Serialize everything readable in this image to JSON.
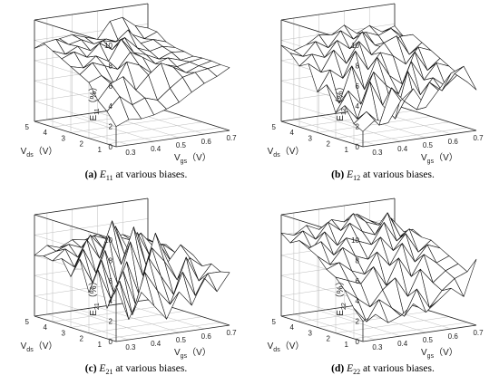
{
  "chart_data": [
    {
      "type": "surface",
      "panel": "a",
      "caption": {
        "label": "(a)",
        "symbol": "E",
        "subscript": "11",
        "text": " at various biases."
      },
      "zlabel": {
        "main": "E",
        "sub": "11",
        "unit": "（%）"
      },
      "xlabel": {
        "main": "V",
        "sub": "gs",
        "unit": "（V）"
      },
      "ylabel": {
        "main": "V",
        "sub": "ds",
        "unit": "（V）"
      },
      "xticks": [
        "0.3",
        "0.4",
        "0.5",
        "0.6",
        "0.7"
      ],
      "yticks": [
        "1",
        "2",
        "3",
        "4",
        "5"
      ],
      "zticks": [
        "0",
        "2",
        "4",
        "6",
        "8",
        "10"
      ],
      "xlim": [
        0.25,
        0.7
      ],
      "ylim": [
        0.5,
        5
      ],
      "zlim": [
        0,
        10
      ],
      "x": [
        0.25,
        0.3,
        0.35,
        0.4,
        0.45,
        0.5,
        0.55,
        0.6,
        0.65,
        0.7
      ],
      "y": [
        0.5,
        1,
        1.5,
        2,
        2.5,
        3,
        3.5,
        4,
        4.5,
        5
      ],
      "z": [
        [
          2.0,
          2.5,
          2.4,
          2.6,
          3.0,
          3.5,
          4.3,
          5.0,
          5.5,
          6.2
        ],
        [
          3.2,
          4.5,
          3.5,
          4.0,
          3.6,
          4.6,
          5.5,
          5.8,
          6.0,
          6.2
        ],
        [
          4.0,
          5.5,
          6.0,
          4.5,
          5.8,
          6.8,
          6.2,
          5.5,
          6.0,
          6.3
        ],
        [
          5.5,
          6.0,
          5.0,
          7.0,
          6.5,
          5.5,
          6.2,
          5.8,
          6.1,
          6.3
        ],
        [
          6.0,
          7.0,
          6.5,
          6.0,
          7.5,
          6.8,
          6.0,
          6.4,
          6.0,
          6.2
        ],
        [
          6.5,
          6.2,
          7.2,
          6.5,
          8.5,
          7.0,
          6.6,
          6.0,
          6.5,
          6.4
        ],
        [
          7.0,
          7.5,
          6.8,
          8.0,
          7.2,
          8.2,
          7.0,
          6.5,
          6.8,
          6.5
        ],
        [
          7.5,
          7.0,
          7.6,
          7.0,
          7.8,
          7.5,
          8.5,
          7.0,
          7.2,
          6.8
        ],
        [
          8.0,
          8.2,
          7.5,
          7.8,
          7.2,
          7.5,
          7.0,
          7.6,
          7.0,
          7.5
        ],
        [
          7.2,
          7.5,
          7.8,
          8.0,
          7.6,
          7.2,
          8.8,
          9.0,
          8.0,
          7.6
        ]
      ]
    },
    {
      "type": "surface",
      "panel": "b",
      "caption": {
        "label": "(b)",
        "symbol": "E",
        "subscript": "12",
        "text": " at various biases."
      },
      "zlabel": {
        "main": "E",
        "sub": "12",
        "unit": "（%）"
      },
      "xlabel": {
        "main": "V",
        "sub": "gs",
        "unit": "（V）"
      },
      "ylabel": {
        "main": "V",
        "sub": "ds",
        "unit": "（V）"
      },
      "xticks": [
        "0.3",
        "0.4",
        "0.5",
        "0.6",
        "0.7"
      ],
      "yticks": [
        "1",
        "2",
        "3",
        "4",
        "5"
      ],
      "zticks": [
        "0",
        "2",
        "4",
        "6",
        "8",
        "10"
      ],
      "xlim": [
        0.25,
        0.7
      ],
      "ylim": [
        0.5,
        5
      ],
      "zlim": [
        0,
        10
      ],
      "x": [
        0.25,
        0.3,
        0.35,
        0.4,
        0.45,
        0.5,
        0.55,
        0.6,
        0.65,
        0.7
      ],
      "y": [
        0.5,
        1,
        1.5,
        2,
        2.5,
        3,
        3.5,
        4,
        4.5,
        5
      ],
      "z": [
        [
          1.5,
          2.5,
          2.0,
          4.0,
          5.0,
          3.0,
          4.5,
          6.0,
          6.5,
          4.0
        ],
        [
          2.0,
          3.0,
          1.5,
          5.0,
          3.5,
          2.5,
          5.0,
          4.0,
          5.5,
          4.5
        ],
        [
          3.5,
          2.0,
          5.5,
          3.0,
          1.5,
          6.0,
          3.5,
          5.0,
          4.0,
          5.0
        ],
        [
          2.5,
          4.5,
          3.0,
          6.0,
          4.5,
          3.5,
          6.5,
          4.5,
          6.0,
          5.5
        ],
        [
          5.0,
          3.0,
          6.5,
          4.0,
          7.0,
          5.0,
          4.0,
          7.0,
          5.0,
          6.0
        ],
        [
          4.0,
          6.0,
          5.0,
          7.5,
          5.5,
          7.0,
          6.5,
          5.5,
          7.0,
          6.5
        ],
        [
          6.5,
          5.5,
          7.5,
          6.0,
          8.0,
          6.5,
          7.5,
          8.0,
          6.0,
          7.0
        ],
        [
          6.0,
          7.0,
          6.5,
          8.0,
          7.0,
          8.5,
          7.0,
          6.5,
          7.5,
          7.5
        ],
        [
          7.0,
          6.5,
          7.8,
          7.0,
          8.5,
          7.5,
          8.0,
          7.5,
          8.0,
          7.0
        ],
        [
          7.5,
          6.8,
          7.2,
          8.0,
          7.8,
          8.6,
          7.6,
          8.2,
          7.4,
          7.8
        ]
      ]
    },
    {
      "type": "surface",
      "panel": "c",
      "caption": {
        "label": "(c)",
        "symbol": "E",
        "subscript": "21",
        "text": " at various biases."
      },
      "zlabel": {
        "main": "E",
        "sub": "21",
        "unit": "（%）"
      },
      "xlabel": {
        "main": "V",
        "sub": "gs",
        "unit": "（V）"
      },
      "ylabel": {
        "main": "V",
        "sub": "ds",
        "unit": "（V）"
      },
      "xticks": [
        "0.3",
        "0.4",
        "0.5",
        "0.6",
        "0.7"
      ],
      "yticks": [
        "1",
        "2",
        "3",
        "4",
        "5"
      ],
      "zticks": [
        "0",
        "2",
        "4",
        "6",
        "8",
        "10"
      ],
      "xlim": [
        0.25,
        0.7
      ],
      "ylim": [
        0.5,
        5
      ],
      "zlim": [
        0,
        10
      ],
      "x": [
        0.25,
        0.3,
        0.35,
        0.4,
        0.45,
        0.5,
        0.55,
        0.6,
        0.65,
        0.7
      ],
      "y": [
        0.5,
        1,
        1.5,
        2,
        2.5,
        3,
        3.5,
        4,
        4.5,
        5
      ],
      "z": [
        [
          5.5,
          2.0,
          4.5,
          3.0,
          1.5,
          4.0,
          2.5,
          5.0,
          3.5,
          5.2
        ],
        [
          3.0,
          5.5,
          2.0,
          6.0,
          4.0,
          2.5,
          5.5,
          3.0,
          5.0,
          5.0
        ],
        [
          6.5,
          3.5,
          6.0,
          2.5,
          7.0,
          5.0,
          3.0,
          6.5,
          4.0,
          5.5
        ],
        [
          4.0,
          7.0,
          3.5,
          6.5,
          3.0,
          7.5,
          6.0,
          4.0,
          6.0,
          5.0
        ],
        [
          7.0,
          4.5,
          7.5,
          4.0,
          8.0,
          4.5,
          8.5,
          5.5,
          7.0,
          5.8
        ],
        [
          5.0,
          7.5,
          5.0,
          8.5,
          5.5,
          9.0,
          5.0,
          7.0,
          5.0,
          6.0
        ],
        [
          6.5,
          5.5,
          8.0,
          6.0,
          9.5,
          6.0,
          8.0,
          5.5,
          6.5,
          5.5
        ],
        [
          6.0,
          7.0,
          6.0,
          8.0,
          6.5,
          8.5,
          6.0,
          7.5,
          6.0,
          6.0
        ],
        [
          6.2,
          6.5,
          7.0,
          6.5,
          7.5,
          7.0,
          7.0,
          6.5,
          6.5,
          5.8
        ],
        [
          6.0,
          6.8,
          6.4,
          7.0,
          6.8,
          7.2,
          6.6,
          6.8,
          6.2,
          6.0
        ]
      ]
    },
    {
      "type": "surface",
      "panel": "d",
      "caption": {
        "label": "(d)",
        "symbol": "E",
        "subscript": "22",
        "text": " at various biases."
      },
      "zlabel": {
        "main": "E",
        "sub": "22",
        "unit": "（%）"
      },
      "xlabel": {
        "main": "V",
        "sub": "gs",
        "unit": "（V）"
      },
      "ylabel": {
        "main": "V",
        "sub": "ds",
        "unit": "（V）"
      },
      "xticks": [
        "0.3",
        "0.4",
        "0.5",
        "0.6",
        "0.7"
      ],
      "yticks": [
        "1",
        "2",
        "3",
        "4",
        "5"
      ],
      "zticks": [
        "0",
        "2",
        "4",
        "6",
        "8",
        "10"
      ],
      "xlim": [
        0.25,
        0.7
      ],
      "ylim": [
        0.5,
        5
      ],
      "zlim": [
        0,
        10
      ],
      "x": [
        0.25,
        0.3,
        0.35,
        0.4,
        0.45,
        0.5,
        0.55,
        0.6,
        0.65,
        0.7
      ],
      "y": [
        0.5,
        1,
        1.5,
        2,
        2.5,
        3,
        3.5,
        4,
        4.5,
        5
      ],
      "z": [
        [
          2.0,
          2.5,
          1.5,
          2.0,
          3.0,
          2.0,
          3.0,
          4.0,
          3.0,
          6.5
        ],
        [
          3.0,
          1.5,
          3.5,
          2.5,
          1.5,
          4.0,
          2.0,
          3.5,
          4.5,
          5.0
        ],
        [
          4.5,
          3.5,
          2.5,
          4.0,
          5.0,
          3.0,
          5.5,
          4.0,
          5.0,
          5.5
        ],
        [
          5.5,
          5.0,
          4.5,
          6.0,
          4.0,
          6.5,
          4.5,
          6.5,
          5.5,
          6.0
        ],
        [
          6.0,
          6.5,
          5.5,
          5.0,
          7.0,
          5.5,
          7.5,
          5.5,
          7.0,
          6.5
        ],
        [
          7.0,
          6.0,
          7.5,
          6.5,
          6.0,
          8.0,
          6.5,
          8.0,
          6.0,
          7.0
        ],
        [
          7.5,
          8.0,
          6.5,
          8.0,
          7.5,
          7.0,
          9.0,
          7.0,
          8.0,
          7.0
        ],
        [
          8.0,
          7.0,
          8.5,
          7.0,
          9.0,
          8.0,
          7.5,
          9.5,
          7.0,
          7.5
        ],
        [
          7.5,
          8.5,
          7.5,
          9.0,
          8.0,
          9.5,
          8.5,
          8.0,
          8.5,
          7.0
        ],
        [
          8.2,
          7.8,
          8.6,
          8.0,
          8.8,
          8.4,
          9.0,
          8.2,
          7.6,
          7.2
        ]
      ]
    }
  ]
}
